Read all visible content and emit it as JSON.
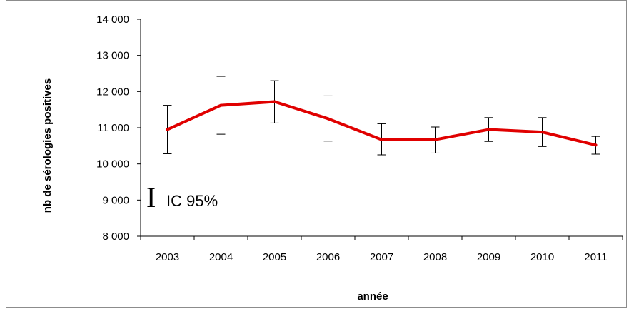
{
  "chart_data": {
    "type": "line",
    "title": "",
    "xlabel": "année",
    "ylabel": "nb de sérologies positives",
    "categories": [
      "2003",
      "2004",
      "2005",
      "2006",
      "2007",
      "2008",
      "2009",
      "2010",
      "2011"
    ],
    "series": [
      {
        "values": [
          10950,
          11620,
          11720,
          11250,
          10670,
          10670,
          10950,
          10880,
          10520
        ],
        "ci_low": [
          10280,
          10820,
          11130,
          10630,
          10250,
          10300,
          10620,
          10480,
          10270
        ],
        "ci_high": [
          11620,
          12420,
          12300,
          11880,
          11110,
          11020,
          11280,
          11280,
          10760
        ],
        "color": "#e00000"
      }
    ],
    "ylim": [
      8000,
      14000
    ],
    "yticks": [
      8000,
      9000,
      10000,
      11000,
      12000,
      13000,
      14000
    ],
    "ytick_labels": [
      "8 000",
      "9 000",
      "10 000",
      "11 000",
      "12 000",
      "13 000",
      "14 000"
    ],
    "grid": false,
    "legend": {
      "glyph": "I",
      "label": "IC 95%",
      "placement": "bottom-left"
    }
  }
}
